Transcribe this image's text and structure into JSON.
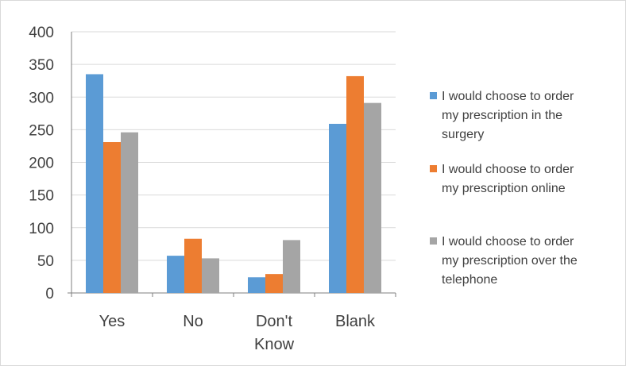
{
  "chart_data": {
    "type": "bar",
    "categories": [
      [
        "Yes"
      ],
      [
        "No"
      ],
      [
        "Don't",
        "Know"
      ],
      [
        "Blank"
      ]
    ],
    "series": [
      {
        "name": "I would choose to order my prescription in the surgery",
        "legend_lines": [
          "I would choose to order",
          "my prescription in the",
          "surgery"
        ],
        "color": "#5b9bd5",
        "values": [
          335,
          57,
          24,
          259
        ]
      },
      {
        "name": "I would choose to order my prescription online",
        "legend_lines": [
          "I would choose to order",
          "my prescription online"
        ],
        "color": "#ed7d31",
        "values": [
          231,
          83,
          29,
          332
        ]
      },
      {
        "name": "I would choose to order my prescription over the telephone",
        "legend_lines": [
          "I would choose to order",
          "my prescription over the",
          "telephone"
        ],
        "color": "#a5a5a5",
        "values": [
          246,
          53,
          81,
          291
        ]
      }
    ],
    "ylim": [
      0,
      400
    ],
    "yticks": [
      0,
      50,
      100,
      150,
      200,
      250,
      300,
      350,
      400
    ],
    "grid": true,
    "legend_position": "right",
    "gridline_color": "#d9d9d9",
    "axis_color": "#7f7f7f"
  }
}
